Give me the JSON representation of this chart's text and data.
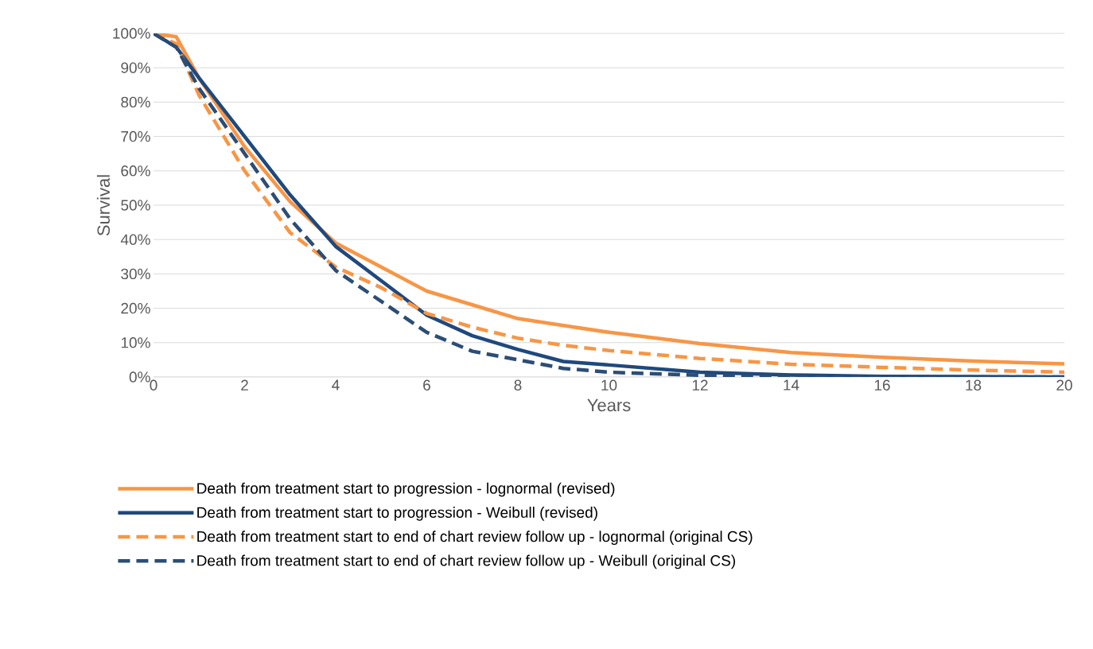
{
  "chart_data": {
    "type": "line",
    "xlabel": "Years",
    "ylabel": "Survival",
    "x": [
      0,
      0.5,
      1,
      2,
      3,
      4,
      5,
      6,
      7,
      8,
      9,
      10,
      12,
      14,
      16,
      18,
      20
    ],
    "series": [
      {
        "name": "Death from treatment start to progression - lognormal (revised)",
        "color": "#f79646",
        "line_style": "solid",
        "values": [
          100,
          99,
          87,
          67,
          51,
          39,
          32,
          25,
          21,
          17,
          15,
          13,
          9.7,
          7.1,
          5.7,
          4.6,
          3.8
        ]
      },
      {
        "name": "Death from treatment start to progression - Weibull (revised)",
        "color": "#1f497d",
        "line_style": "solid",
        "values": [
          100,
          96,
          87,
          70,
          53,
          38,
          28,
          18,
          12,
          8,
          4.5,
          3.5,
          1.4,
          0.6,
          0.2,
          0.1,
          0
        ]
      },
      {
        "name": "Death from treatment start to end of chart review follow up - lognormal (original CS)",
        "color": "#f79646",
        "line_style": "dashed",
        "values": [
          100,
          97,
          82,
          60,
          42,
          32,
          26,
          18.5,
          14.5,
          11.3,
          9.2,
          7.7,
          5.4,
          3.7,
          2.8,
          2,
          1.4
        ]
      },
      {
        "name": "Death from treatment start to end of chart review follow up - Weibull (original CS)",
        "color": "#2c4d75",
        "line_style": "dashed",
        "values": [
          100,
          96,
          84,
          65,
          46,
          31,
          22,
          13,
          7.5,
          5,
          2.5,
          1.4,
          0.5,
          0,
          0,
          0,
          0
        ]
      }
    ],
    "xlim": [
      0,
      20
    ],
    "xticks": [
      0,
      2,
      4,
      6,
      8,
      10,
      12,
      14,
      16,
      18,
      20
    ],
    "ylim": [
      0,
      100
    ],
    "yticks": [
      {
        "value": 0,
        "label": "0%"
      },
      {
        "value": 10,
        "label": "10%"
      },
      {
        "value": 20,
        "label": "20%"
      },
      {
        "value": 30,
        "label": "30%"
      },
      {
        "value": 40,
        "label": "40%"
      },
      {
        "value": 50,
        "label": "50%"
      },
      {
        "value": 60,
        "label": "60%"
      },
      {
        "value": 70,
        "label": "70%"
      },
      {
        "value": 80,
        "label": "80%"
      },
      {
        "value": 90,
        "label": "90%"
      },
      {
        "value": 100,
        "label": "100%"
      }
    ],
    "grid": "y",
    "legend": "bottom",
    "marker": "none"
  }
}
